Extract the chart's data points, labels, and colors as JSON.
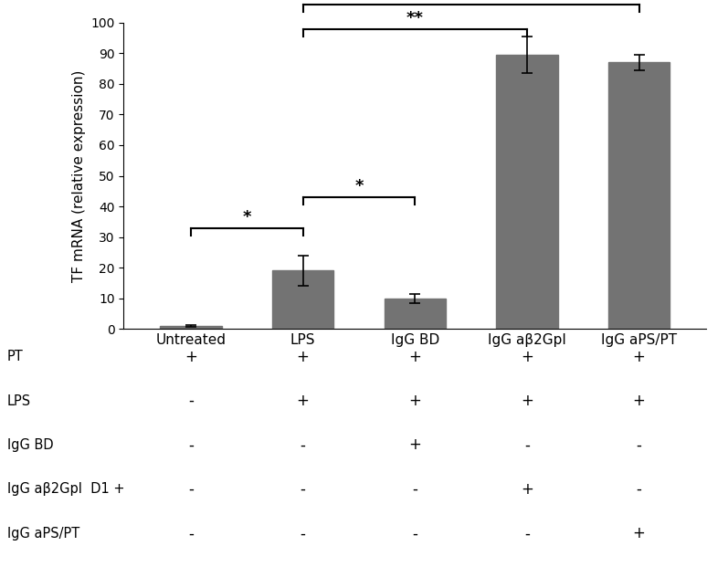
{
  "categories": [
    "Untreated",
    "LPS",
    "IgG BD",
    "IgG aβ2GpI",
    "IgG aPS/PT"
  ],
  "values": [
    1.0,
    19.0,
    10.0,
    89.5,
    87.0
  ],
  "errors": [
    0.3,
    5.0,
    1.5,
    6.0,
    2.5
  ],
  "bar_color": "#737373",
  "bar_width": 0.55,
  "ylabel": "TF mRNA (relative expression)",
  "ylim": [
    0,
    100
  ],
  "yticks": [
    0,
    10,
    20,
    30,
    40,
    50,
    60,
    70,
    80,
    90,
    100
  ],
  "table_rows": [
    "PT",
    "LPS",
    "IgG BD",
    "IgG aβ2GpI  D1 +",
    "IgG aPS/PT"
  ],
  "table_data": [
    [
      "+",
      "+",
      "+",
      "+",
      "+"
    ],
    [
      "-",
      "+",
      "+",
      "+",
      "+"
    ],
    [
      "-",
      "-",
      "+",
      "-",
      "-"
    ],
    [
      "-",
      "-",
      "-",
      "+",
      "-"
    ],
    [
      "-",
      "-",
      "-",
      "-",
      "+"
    ]
  ]
}
